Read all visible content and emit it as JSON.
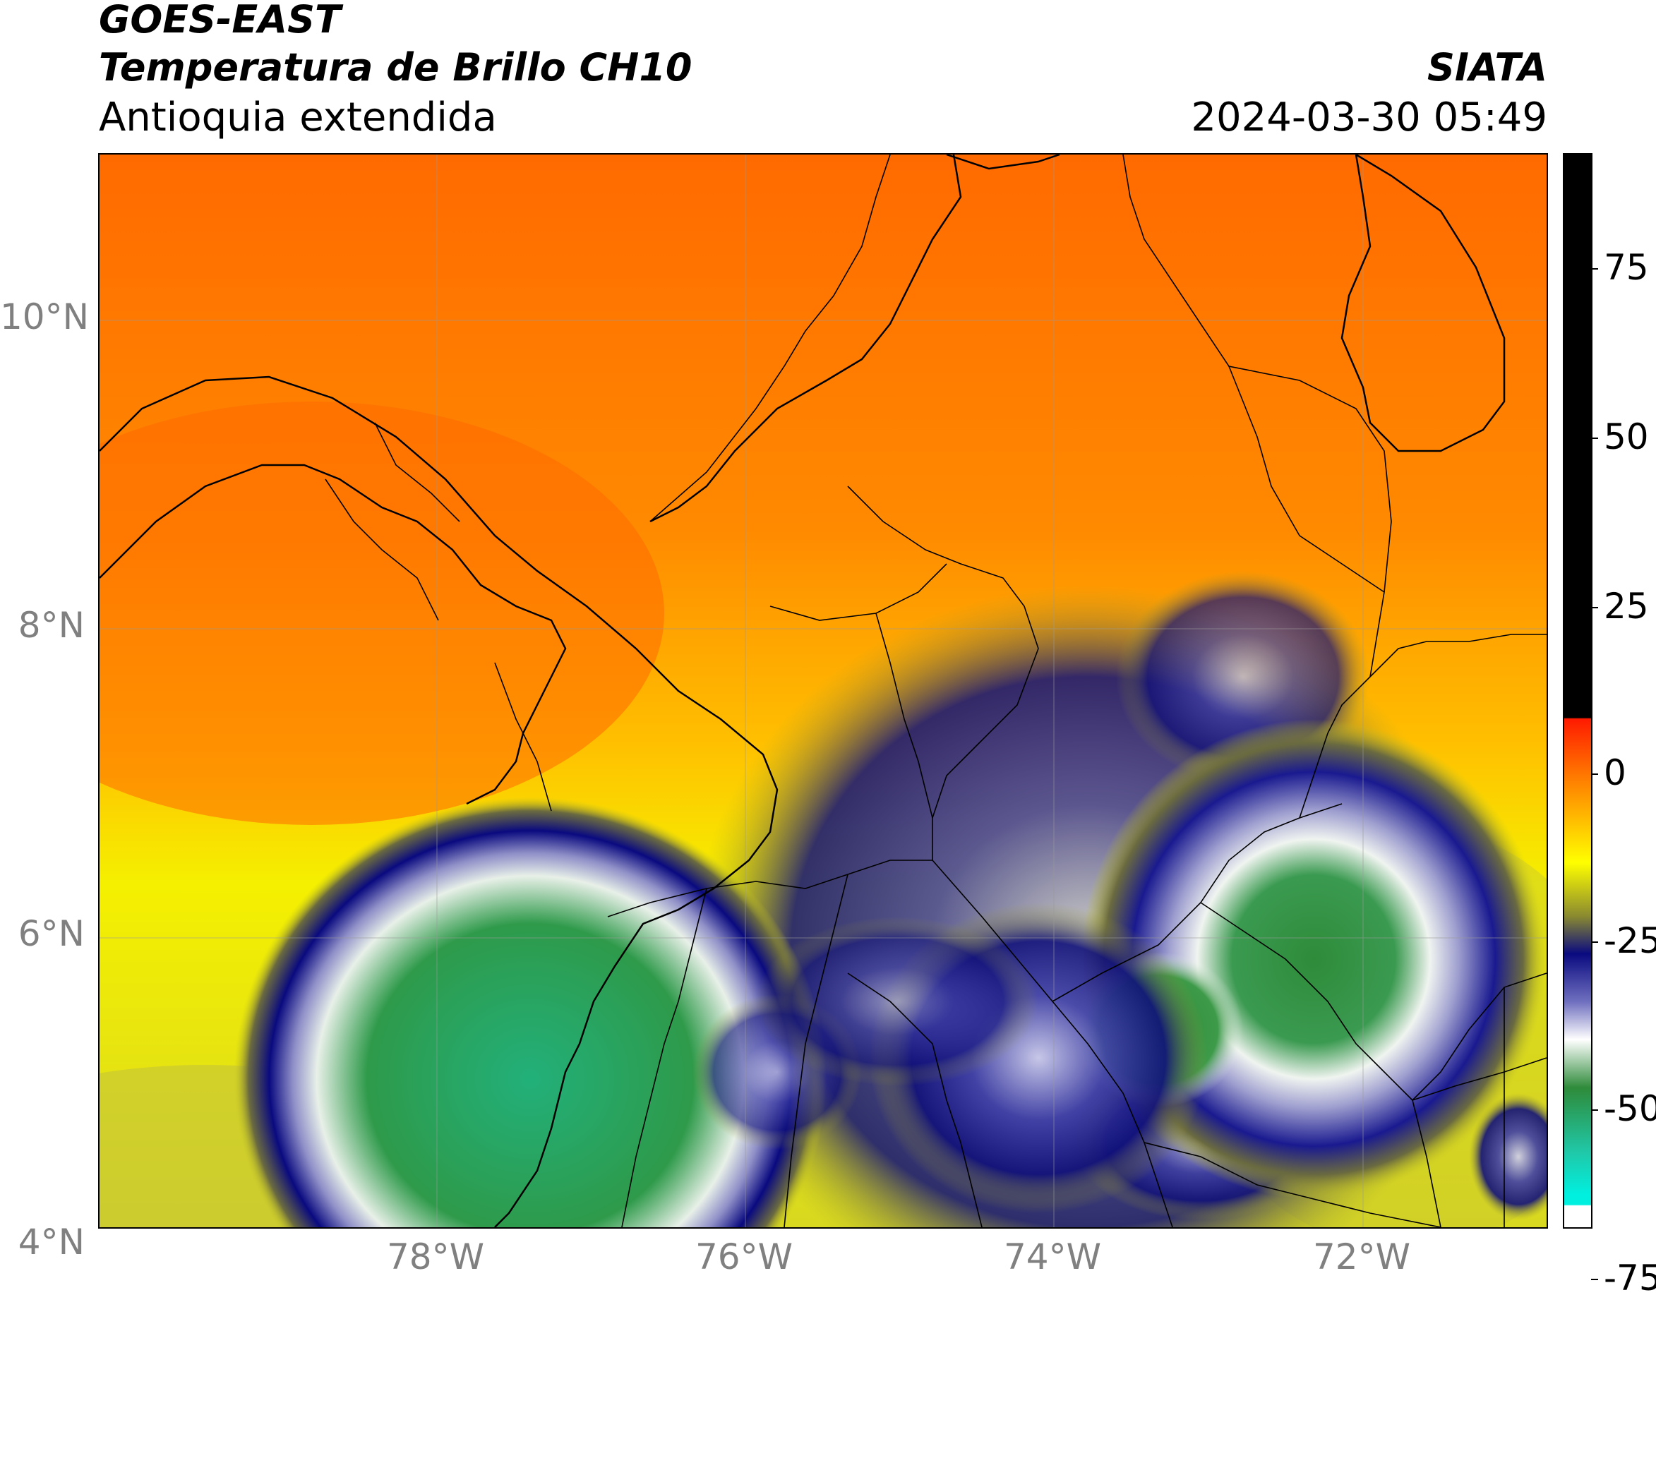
{
  "header": {
    "line1": "GOES-EAST",
    "line2": "Temperatura de Brillo CH10",
    "line3": "Antioquia extendida",
    "org": "SIATA",
    "datetime": "2024-03-30 05:49"
  },
  "map": {
    "lat_ticks": [
      "10°N",
      "8°N",
      "6°N",
      "4°N"
    ],
    "lon_ticks": [
      "78°W",
      "76°W",
      "74°W",
      "72°W"
    ],
    "extent": {
      "lon_min": -80.2,
      "lon_max": -70.8,
      "lat_min": 2.9,
      "lat_max": 11.05
    }
  },
  "colorbar": {
    "ticks": [
      "75",
      "50",
      "25",
      "0",
      "-25",
      "-50",
      "-75"
    ],
    "range": [
      -95,
      92
    ],
    "colors": {
      "warm_top": "#000000",
      "red": "#ff1a00",
      "orange": "#ff7a00",
      "yellow": "#ffff00",
      "olive": "#8a8a30",
      "navy": "#0a0a80",
      "white": "#ffffff",
      "green": "#2e8b3a",
      "teal": "#20c8a8",
      "cyan": "#00f0e0"
    }
  }
}
